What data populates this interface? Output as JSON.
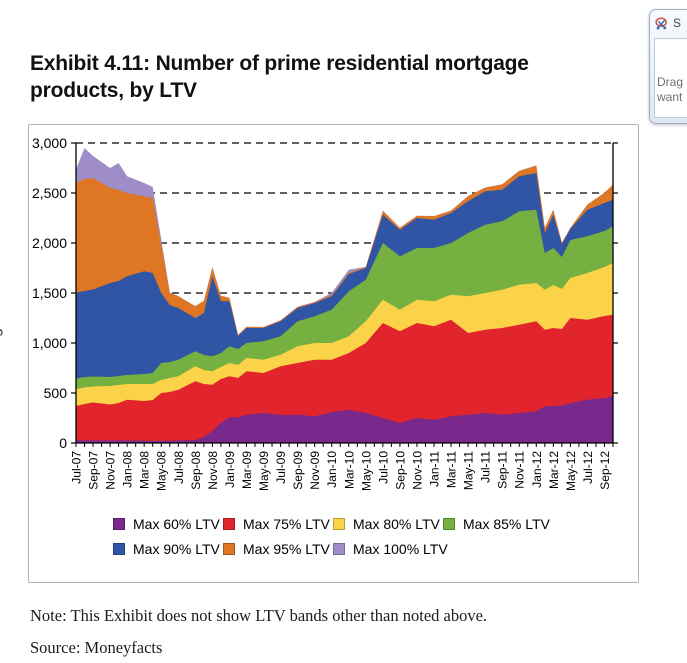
{
  "header": {
    "title": "Exhibit 4.11: Number of prime residential mortgage products, by LTV"
  },
  "footer": {
    "note": "Note: This Exhibit does not show LTV bands other than noted above.",
    "source": "Source: Moneyfacts"
  },
  "side_axis_label_partial": "s",
  "snip_panel": {
    "icon": "snipping-tool-icon",
    "title_partial": "S",
    "instruction_line1": "Drag",
    "instruction_line2": "want"
  },
  "chart_data": {
    "type": "area",
    "variant": "stacked",
    "title": "Number of prime residential mortgage products, by LTV",
    "grid": "horizontal dashed gridlines at every 500",
    "legend_position": "bottom, two rows",
    "ylim": [
      0,
      3000
    ],
    "yticks": [
      0,
      500,
      1000,
      1500,
      2000,
      2500,
      3000
    ],
    "ytick_labels": [
      "0",
      "500",
      "1,000",
      "1,500",
      "2,000",
      "2,500",
      "3,000"
    ],
    "x_unit": "months since Jul-07 (monthly data, labels every 2 months)",
    "x_months": [
      0,
      1,
      2,
      4,
      5,
      6,
      8,
      9,
      10,
      11,
      12,
      14,
      15,
      16,
      17,
      18,
      19,
      20,
      22,
      24,
      26,
      28,
      30,
      32,
      34,
      36,
      38,
      40,
      42,
      44,
      46,
      48,
      50,
      52,
      54,
      55,
      56,
      57,
      58,
      60,
      62,
      63
    ],
    "x_tick_labels": [
      "Jul-07",
      "Sep-07",
      "Nov-07",
      "Jan-08",
      "Mar-08",
      "May-08",
      "Jul-08",
      "Sep-08",
      "Nov-08",
      "Jan-09",
      "Mar-09",
      "May-09",
      "Jul-09",
      "Sep-09",
      "Nov-09",
      "Jan-10",
      "Mar-10",
      "May-10",
      "Jul-10",
      "Sep-10",
      "Nov-10",
      "Jan-11",
      "Mar-11",
      "May-11",
      "Jul-11",
      "Sep-11",
      "Nov-11",
      "Jan-12",
      "Mar-12",
      "May-12",
      "Jul-12",
      "Sep-12"
    ],
    "series": [
      {
        "name": "Max 60% LTV",
        "color": "#79298C",
        "values": [
          30,
          28,
          25,
          25,
          25,
          25,
          22,
          20,
          20,
          22,
          25,
          30,
          60,
          120,
          200,
          260,
          255,
          283,
          300,
          280,
          283,
          267,
          307,
          333,
          300,
          250,
          200,
          250,
          233,
          267,
          283,
          300,
          283,
          300,
          317,
          367,
          370,
          375,
          400,
          433,
          450,
          467
        ]
      },
      {
        "name": "Max 75% LTV",
        "color": "#E2242D",
        "values": [
          340,
          362,
          380,
          360,
          375,
          408,
          398,
          410,
          480,
          488,
          508,
          587,
          530,
          463,
          440,
          407,
          395,
          434,
          400,
          487,
          517,
          566,
          526,
          567,
          700,
          950,
          917,
          950,
          934,
          966,
          817,
          833,
          867,
          883,
          900,
          766,
          780,
          765,
          850,
          800,
          820,
          816
        ]
      },
      {
        "name": "Max 80% LTV",
        "color": "#FBD348",
        "values": [
          170,
          165,
          160,
          185,
          180,
          157,
          170,
          160,
          130,
          140,
          134,
          150,
          140,
          134,
          120,
          133,
          130,
          133,
          133,
          116,
          167,
          167,
          167,
          167,
          217,
          233,
          216,
          233,
          250,
          250,
          367,
          367,
          383,
          400,
          383,
          400,
          430,
          400,
          400,
          467,
          490,
          517
        ]
      },
      {
        "name": "Max 85% LTV",
        "color": "#76B041",
        "values": [
          105,
          105,
          100,
          90,
          90,
          90,
          100,
          110,
          170,
          160,
          166,
          150,
          150,
          150,
          140,
          167,
          160,
          150,
          184,
          184,
          250,
          267,
          333,
          450,
          416,
          567,
          534,
          517,
          533,
          517,
          633,
          683,
          684,
          734,
          733,
          367,
          370,
          320,
          380,
          367,
          360,
          367
        ]
      },
      {
        "name": "Max 90% LTV",
        "color": "#2F55A4",
        "values": [
          860,
          860,
          870,
          940,
          950,
          987,
          1027,
          1000,
          700,
          570,
          517,
          333,
          420,
          800,
          520,
          450,
          130,
          150,
          133,
          150,
          133,
          133,
          134,
          173,
          117,
          283,
          266,
          300,
          283,
          300,
          317,
          334,
          316,
          350,
          367,
          200,
          330,
          130,
          110,
          266,
          280,
          266
        ]
      },
      {
        "name": "Max 95% LTV",
        "color": "#DE7623",
        "values": [
          1095,
          1120,
          1115,
          950,
          910,
          833,
          750,
          750,
          480,
          120,
          117,
          117,
          121,
          89,
          51,
          34,
          11,
          11,
          9,
          9,
          11,
          9,
          14,
          12,
          9,
          38,
          19,
          21,
          35,
          23,
          51,
          36,
          53,
          53,
          73,
          51,
          51,
          11,
          11,
          51,
          101,
          151
        ]
      },
      {
        "name": "Max 100% LTV",
        "color": "#9E8DC8",
        "values": [
          135,
          310,
          220,
          200,
          270,
          167,
          133,
          110,
          60,
          5,
          2,
          2,
          2,
          2,
          2,
          2,
          2,
          2,
          2,
          2,
          2,
          2,
          20,
          30,
          2,
          2,
          2,
          2,
          2,
          2,
          2,
          2,
          2,
          2,
          2,
          1,
          1,
          1,
          1,
          1,
          1,
          1
        ]
      }
    ]
  }
}
